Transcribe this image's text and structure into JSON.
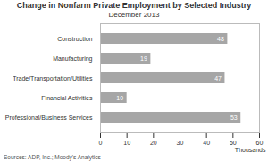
{
  "chart_data": {
    "type": "bar",
    "orientation": "horizontal",
    "title": "Change in Nonfarm Private Employment by Selected Industry",
    "subtitle": "December 2013",
    "x_label": "Thousands",
    "caption": "Sources: ADP, Inc.; Moody's Analytics",
    "categories": [
      "Construction",
      "Manufacturing",
      "Trade/Transportation/Utilities",
      "Financial Activities",
      "Professional/Business Services"
    ],
    "values": [
      48,
      19,
      47,
      10,
      53
    ],
    "color": "#a6a6a6",
    "xlim": [
      0,
      60
    ],
    "xticks": [
      0,
      10,
      20,
      30,
      40,
      50,
      60
    ],
    "data_labels": true,
    "grid": false
  }
}
